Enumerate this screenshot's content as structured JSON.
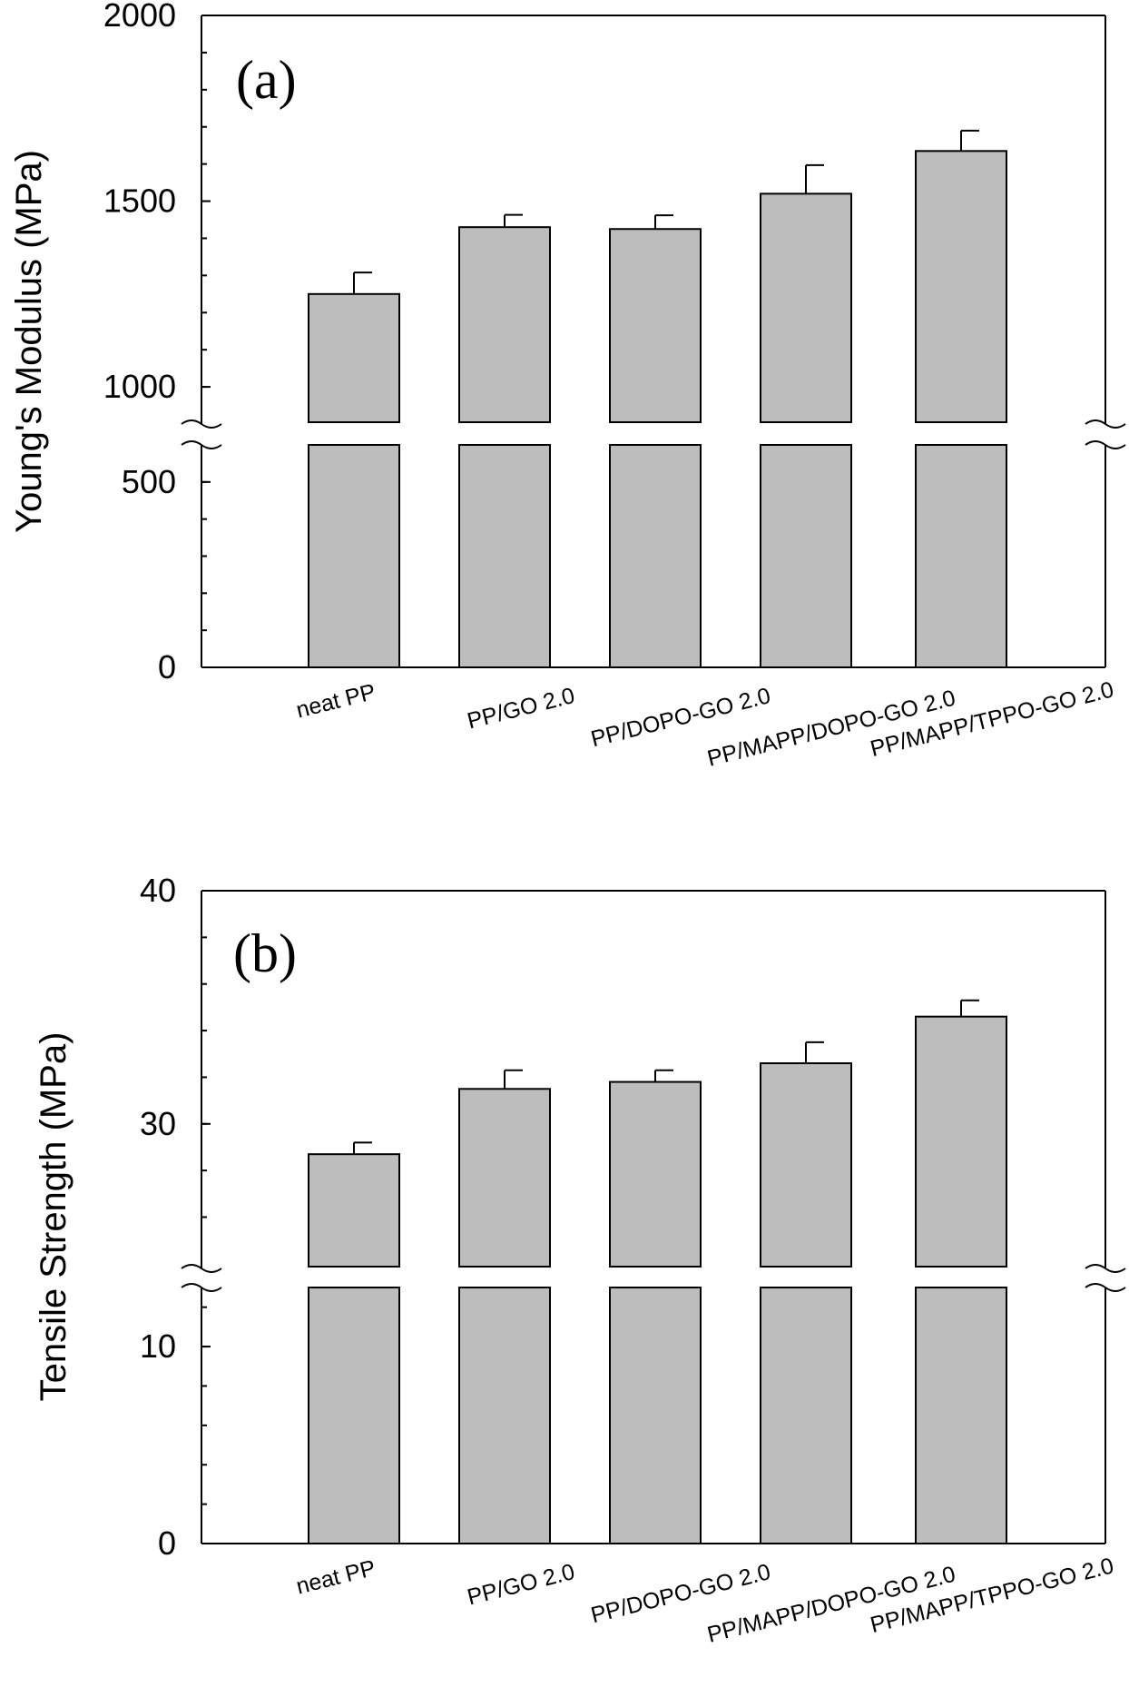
{
  "chart_data": [
    {
      "type": "bar",
      "panel_label": "(a)",
      "ylabel": "Young's Modulus (MPa)",
      "categories": [
        "neat PP",
        "PP/GO 2.0",
        "PP/DOPO-GO 2.0",
        "PP/MAPP/DOPO-GO 2.0",
        "PP/MAPP/TPPO-GO 2.0"
      ],
      "values": [
        1250,
        1430,
        1425,
        1520,
        1635
      ],
      "errors": [
        58,
        33,
        37,
        77,
        55
      ],
      "y_broken_axis": true,
      "ylim_lower": [
        0,
        600
      ],
      "ylim_upper": [
        900,
        2000
      ],
      "yticks_lower": [
        "0",
        "500"
      ],
      "yticks_upper": [
        "1000",
        "1500",
        "2000"
      ],
      "bar_color": "#bdbdbd",
      "grid": false
    },
    {
      "type": "bar",
      "panel_label": "(b)",
      "ylabel": "Tensile Strength (MPa)",
      "categories": [
        "neat PP",
        "PP/GO 2.0",
        "PP/DOPO-GO 2.0",
        "PP/MAPP/DOPO-GO 2.0",
        "PP/MAPP/TPPO-GO 2.0"
      ],
      "values": [
        28.7,
        31.5,
        31.8,
        32.6,
        34.6
      ],
      "errors": [
        0.5,
        0.8,
        0.5,
        0.9,
        0.7
      ],
      "y_broken_axis": true,
      "ylim_lower": [
        0,
        13
      ],
      "ylim_upper": [
        23.8,
        40
      ],
      "yticks_lower": [
        "0",
        "10"
      ],
      "yticks_upper": [
        "30",
        "40"
      ],
      "bar_color": "#bdbdbd",
      "grid": false
    }
  ]
}
